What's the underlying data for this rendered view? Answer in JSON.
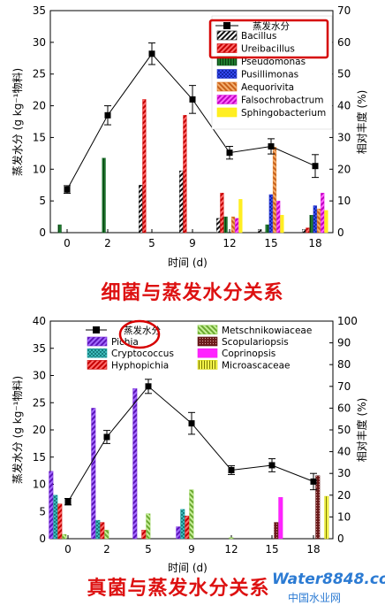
{
  "colors": {
    "accent_red": "#d60000",
    "watermark_blue": "#2c7bd3"
  },
  "watermark": {
    "brand": "Water8848.com",
    "cn": "中国水业网"
  },
  "chart_data": [
    {
      "type": "bar",
      "caption": "细菌与蒸发水分关系",
      "xlabel": "时间 (d)",
      "ylabel_left": "蒸发水分 (g kg⁻¹物料)",
      "ylabel_right": "相对丰度 (%)",
      "ylim_left": [
        0,
        35
      ],
      "ylim_right": [
        0,
        70
      ],
      "yticks_left": [
        "0",
        "5",
        "10",
        "15",
        "20",
        "25",
        "30",
        "35"
      ],
      "yticks_right": [
        "0",
        "10",
        "20",
        "30",
        "40",
        "50",
        "60",
        "70"
      ],
      "categories": [
        "0",
        "2",
        "5",
        "9",
        "12",
        "15",
        "18"
      ],
      "legend_line": "蒸发水分",
      "line": {
        "name": "蒸发水分",
        "values": [
          6.8,
          18.5,
          28.2,
          21.0,
          12.6,
          13.6,
          10.5
        ],
        "errors": [
          0.6,
          1.5,
          1.7,
          2.2,
          1.0,
          1.2,
          1.8
        ]
      },
      "series": [
        {
          "name": "Bacillus",
          "color": "#111111",
          "pattern": "hatch-black",
          "values": [
            0,
            0,
            15.0,
            19.5,
            4.5,
            1.0,
            1.0
          ]
        },
        {
          "name": "Ureibacillus",
          "color": "#d40000",
          "pattern": "hatch-red",
          "values": [
            0,
            0,
            42.0,
            37.0,
            12.5,
            0,
            1.5
          ]
        },
        {
          "name": "Pseudomonas",
          "color": "#0d5c1e",
          "pattern": "vert-green",
          "values": [
            2.5,
            23.5,
            0,
            0,
            5.0,
            2.5,
            5.5
          ]
        },
        {
          "name": "Pusillimonas",
          "color": "#2233cc",
          "pattern": "cross-blue",
          "values": [
            0,
            0,
            0,
            0,
            0,
            12.0,
            8.5
          ]
        },
        {
          "name": "Aequorivita",
          "color": "#e07a22",
          "pattern": "hatch-orange",
          "values": [
            0,
            0,
            0,
            0,
            5.0,
            27.0,
            7.5
          ]
        },
        {
          "name": "Falsochrobactrum",
          "color": "#e01fe0",
          "pattern": "hatch-magenta",
          "values": [
            0,
            0,
            0,
            0,
            4.5,
            10.0,
            12.5
          ]
        },
        {
          "name": "Sphingobacterium",
          "color": "#ffee00",
          "pattern": "solid-yellow",
          "values": [
            0,
            0,
            0,
            0,
            10.5,
            5.5,
            7.0
          ]
        }
      ]
    },
    {
      "type": "bar",
      "caption": "真菌与蒸发水分关系",
      "xlabel": "时间 (d)",
      "ylabel_left": "蒸发水分 (g kg⁻¹物料)",
      "ylabel_right": "相对丰度 (%)",
      "ylim_left": [
        0,
        40
      ],
      "ylim_right": [
        0,
        100
      ],
      "yticks_left": [
        "0",
        "5",
        "10",
        "15",
        "20",
        "25",
        "30",
        "35",
        "40"
      ],
      "yticks_right": [
        "0",
        "10",
        "20",
        "30",
        "40",
        "50",
        "60",
        "70",
        "80",
        "90",
        "100"
      ],
      "categories": [
        "0",
        "2",
        "5",
        "9",
        "12",
        "15",
        "18"
      ],
      "legend_line": "蒸发水分",
      "line": {
        "name": "蒸发水分",
        "values": [
          6.8,
          18.7,
          28.0,
          21.2,
          12.6,
          13.5,
          10.5
        ],
        "errors": [
          0.6,
          1.2,
          1.3,
          2.0,
          0.8,
          1.2,
          1.5
        ]
      },
      "series": [
        {
          "name": "Pichia",
          "color": "#7b2ad8",
          "pattern": "hatch-purple",
          "values": [
            31.0,
            60.0,
            69.0,
            5.5,
            0,
            0,
            0
          ]
        },
        {
          "name": "Cryptococcus",
          "color": "#1ba6a6",
          "pattern": "cross-teal",
          "values": [
            20.0,
            8.5,
            0,
            13.5,
            0,
            0,
            0
          ]
        },
        {
          "name": "Hyphopichia",
          "color": "#cc1111",
          "pattern": "hatch-red",
          "values": [
            16.0,
            7.5,
            4.0,
            10.5,
            0,
            0,
            0
          ]
        },
        {
          "name": "Metschnikowiaceae",
          "color": "#88cc44",
          "pattern": "hatch-green",
          "values": [
            2.0,
            4.0,
            11.5,
            22.5,
            0.5,
            0,
            0
          ]
        },
        {
          "name": "Scopulariopsis",
          "color": "#5a1414",
          "pattern": "dots-maroon",
          "values": [
            0,
            0,
            0,
            0,
            0,
            7.5,
            29.0
          ]
        },
        {
          "name": "Coprinopsis",
          "color": "#ee22ee",
          "pattern": "solid-magenta",
          "values": [
            0,
            0,
            0,
            0,
            0,
            19.0,
            0
          ]
        },
        {
          "name": "Microascaceae",
          "color": "#d6d600",
          "pattern": "vert-yellow",
          "values": [
            0,
            0,
            0,
            0,
            0,
            0,
            19.5
          ]
        }
      ]
    }
  ]
}
